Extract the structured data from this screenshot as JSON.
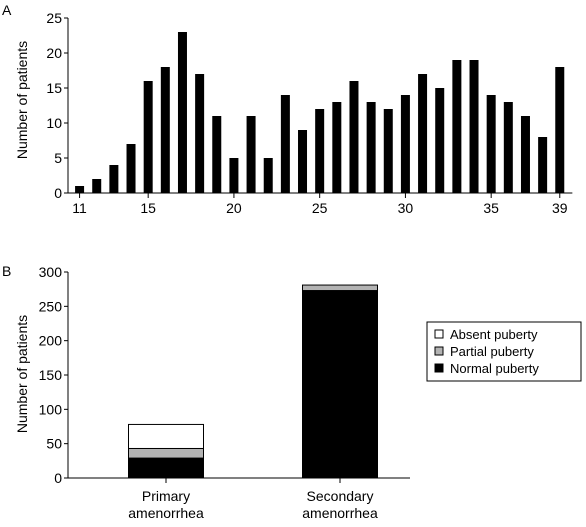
{
  "chart_data": [
    {
      "panel": "A",
      "type": "bar",
      "title": "",
      "xlabel": "",
      "ylabel": "Number of patients",
      "ylim": [
        0,
        25
      ],
      "yticks": [
        "0",
        "5",
        "10",
        "15",
        "20",
        "25"
      ],
      "x_tick_labels": [
        "11",
        "15",
        "20",
        "25",
        "30",
        "35",
        "39"
      ],
      "x": [
        11,
        12,
        13,
        14,
        15,
        16,
        17,
        18,
        19,
        20,
        21,
        22,
        23,
        24,
        25,
        26,
        27,
        28,
        29,
        30,
        31,
        32,
        33,
        34,
        35,
        36,
        37,
        38,
        39
      ],
      "values": [
        1,
        2,
        4,
        7,
        16,
        18,
        23,
        17,
        11,
        5,
        11,
        5,
        14,
        9,
        12,
        13,
        16,
        13,
        12,
        14,
        17,
        15,
        19,
        19,
        14,
        13,
        11,
        8,
        18
      ],
      "bar_color": "#000000",
      "grid": false
    },
    {
      "panel": "B",
      "type": "bar",
      "stacked": true,
      "title": "",
      "xlabel": "",
      "ylabel": "Number of patients",
      "ylim": [
        0,
        300
      ],
      "yticks": [
        "0",
        "50",
        "100",
        "150",
        "200",
        "250",
        "300"
      ],
      "categories": [
        [
          "Primary",
          "amenorrhea"
        ],
        [
          "Secondary",
          "amenorrhea"
        ]
      ],
      "series": [
        {
          "name": "Normal puberty",
          "color": "#000000",
          "values": [
            29,
            273
          ]
        },
        {
          "name": "Partial puberty",
          "color": "#b3b3b3",
          "values": [
            14,
            8
          ]
        },
        {
          "name": "Absent puberty",
          "color": "#ffffff",
          "values": [
            35,
            0
          ]
        }
      ],
      "legend": {
        "placement": "right",
        "order": [
          "Absent puberty",
          "Partial puberty",
          "Normal puberty"
        ]
      },
      "grid": false
    }
  ]
}
